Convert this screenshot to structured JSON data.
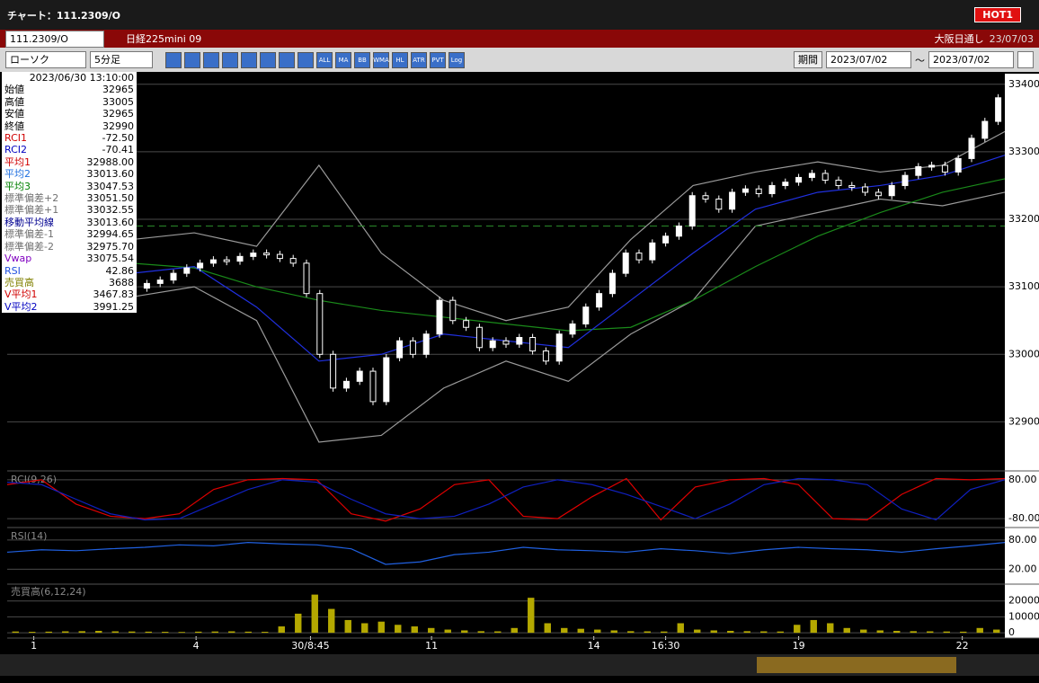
{
  "title_bar": {
    "title": "チャート：111.2309/O",
    "badge": "HOT1"
  },
  "symbol_bar": {
    "code": "111.2309/O",
    "name": "日経225mini 09",
    "session": "大阪日通し",
    "date": "23/07/03"
  },
  "toolbar": {
    "chart_style": "ローソク",
    "interval": "5分足",
    "icon_labels": [
      "ALL",
      "MA",
      "BB",
      "WMA",
      "HL",
      "ATR",
      "PVT",
      "Log"
    ],
    "period_button": "期間",
    "date_from": "2023/07/02",
    "separator": "〜",
    "date_to": "2023/07/02"
  },
  "info_panel": {
    "datetime": "2023/06/30 13:10:00",
    "rows": [
      [
        "始値",
        "32965",
        "#000000"
      ],
      [
        "高値",
        "33005",
        "#000000"
      ],
      [
        "安値",
        "32965",
        "#000000"
      ],
      [
        "終値",
        "32990",
        "#000000"
      ],
      [
        "RCI1",
        "-72.50",
        "#d00000"
      ],
      [
        "RCI2",
        "-70.41",
        "#0000c0"
      ],
      [
        "平均1",
        "32988.00",
        "#d00000"
      ],
      [
        "平均2",
        "33013.60",
        "#2070e0"
      ],
      [
        "平均3",
        "33047.53",
        "#008000"
      ],
      [
        "標準偏差+2",
        "33051.50",
        "#707070"
      ],
      [
        "標準偏差+1",
        "33032.55",
        "#707070"
      ],
      [
        "移動平均線",
        "33013.60",
        "#000090"
      ],
      [
        "標準偏差-1",
        "32994.65",
        "#707070"
      ],
      [
        "標準偏差-2",
        "32975.70",
        "#707070"
      ],
      [
        "Vwap",
        "33075.54",
        "#8000c0"
      ],
      [
        "RSI",
        "42.86",
        "#2050e0"
      ],
      [
        "売買高",
        "3688",
        "#808000"
      ],
      [
        "V平均1",
        "3467.83",
        "#d00000"
      ],
      [
        "V平均2",
        "3991.25",
        "#0000c0"
      ]
    ]
  },
  "chart_data": [
    {
      "type": "candlestick",
      "ylim": [
        32830,
        33413
      ],
      "yticks": [
        33400,
        33300,
        33200,
        33100,
        33000,
        32900
      ],
      "xlim": [
        0,
        75
      ],
      "xticks": [
        {
          "value": 2,
          "label": "1"
        },
        {
          "value": 14.2,
          "label": "4"
        },
        {
          "value": 22.8,
          "label": "30/8:45"
        },
        {
          "value": 31.9,
          "label": "11"
        },
        {
          "value": 44.1,
          "label": "14"
        },
        {
          "value": 49.5,
          "label": "16:30"
        },
        {
          "value": 59.5,
          "label": "19"
        },
        {
          "value": 71.8,
          "label": "22"
        }
      ],
      "grid": true,
      "up_color": "#ffffff",
      "down_color": "#000000",
      "reference_line": 33190,
      "reference_color": "#2a8a2a",
      "closes": [
        33070,
        33075,
        33068,
        33080,
        33090,
        33085,
        33095,
        33100,
        33092,
        33098,
        33105,
        33110,
        33120,
        33128,
        33135,
        33140,
        33138,
        33145,
        33150,
        33148,
        33142,
        33135,
        33090,
        33000,
        32950,
        32960,
        32975,
        32930,
        32995,
        33020,
        33000,
        33030,
        33080,
        33050,
        33040,
        33010,
        33020,
        33015,
        33025,
        33005,
        32990,
        33030,
        33045,
        33070,
        33090,
        33120,
        33150,
        33140,
        33165,
        33175,
        33190,
        33235,
        33230,
        33215,
        33240,
        33245,
        33238,
        33250,
        33255,
        33262,
        33268,
        33258,
        33250,
        33248,
        33240,
        33235,
        33250,
        33265,
        33278,
        33280,
        33270,
        33290,
        33320,
        33345,
        33380
      ],
      "lines": [
        {
          "color": "#9a9a9a",
          "values": [
            33190,
            33180,
            33170,
            33180,
            33160,
            33280,
            33150,
            33080,
            33050,
            33070,
            33170,
            33250,
            33270,
            33285,
            33270,
            33280,
            33330
          ]
        },
        {
          "color": "#9a9a9a",
          "values": [
            33100,
            33090,
            33085,
            33100,
            33050,
            32870,
            32880,
            32950,
            32990,
            32960,
            33030,
            33080,
            33190,
            33210,
            33230,
            33220,
            33240
          ]
        },
        {
          "color": "#1a8a1a",
          "values": [
            33165,
            33150,
            33135,
            33128,
            33100,
            33080,
            33065,
            33055,
            33045,
            33035,
            33040,
            33080,
            33130,
            33175,
            33210,
            33240,
            33260
          ]
        },
        {
          "color": "#2030e0",
          "values": [
            33120,
            33115,
            33120,
            33130,
            33070,
            32990,
            33000,
            33030,
            33020,
            33010,
            33080,
            33150,
            33215,
            33240,
            33250,
            33265,
            33295
          ]
        }
      ]
    },
    {
      "type": "line",
      "title": "RCI(9,26)",
      "ylim": [
        -109,
        109
      ],
      "yticks": [
        {
          "value": 80,
          "label": "80.00"
        },
        {
          "value": -80,
          "label": "-80.00"
        }
      ],
      "series": [
        {
          "color": "#e00000",
          "values": [
            60,
            80,
            -20,
            -70,
            -80,
            -60,
            40,
            80,
            85,
            80,
            -60,
            -90,
            -40,
            60,
            80,
            -70,
            -80,
            10,
            85,
            -85,
            50,
            80,
            85,
            60,
            -80,
            -85,
            20,
            85,
            80,
            85
          ]
        },
        {
          "color": "#1020c0",
          "values": [
            70,
            60,
            0,
            -60,
            -85,
            -80,
            -20,
            40,
            80,
            70,
            0,
            -60,
            -80,
            -70,
            -20,
            50,
            80,
            60,
            20,
            -30,
            -80,
            -20,
            60,
            85,
            80,
            60,
            -40,
            -85,
            40,
            80
          ]
        }
      ]
    },
    {
      "type": "line",
      "title": "RSI(14)",
      "ylim": [
        -7,
        102
      ],
      "yticks": [
        {
          "value": 80,
          "label": "80.00"
        },
        {
          "value": 20,
          "label": "20.00"
        }
      ],
      "series": [
        {
          "color": "#2060e0",
          "values": [
            55,
            60,
            58,
            62,
            65,
            70,
            68,
            75,
            72,
            70,
            62,
            30,
            35,
            50,
            55,
            65,
            60,
            58,
            55,
            62,
            58,
            52,
            60,
            65,
            62,
            60,
            55,
            62,
            68,
            75
          ]
        }
      ]
    },
    {
      "type": "bar",
      "title": "売買高(6,12,24)",
      "ylim": [
        -2200,
        30000
      ],
      "yticks": [
        20000,
        10000,
        0
      ],
      "color": "#b4a800",
      "values": [
        800,
        600,
        700,
        900,
        1000,
        1200,
        900,
        800,
        700,
        600,
        500,
        700,
        800,
        900,
        700,
        600,
        4000,
        12000,
        24000,
        15000,
        8000,
        6000,
        7000,
        5000,
        4000,
        3000,
        2000,
        1500,
        1000,
        900,
        3000,
        22000,
        6000,
        3000,
        2500,
        2000,
        1500,
        1000,
        900,
        800,
        6000,
        2000,
        1500,
        1200,
        1000,
        900,
        800,
        5000,
        8000,
        6000,
        3000,
        2000,
        1500,
        1200,
        1000,
        900,
        800,
        700,
        3000,
        2000
      ]
    }
  ]
}
